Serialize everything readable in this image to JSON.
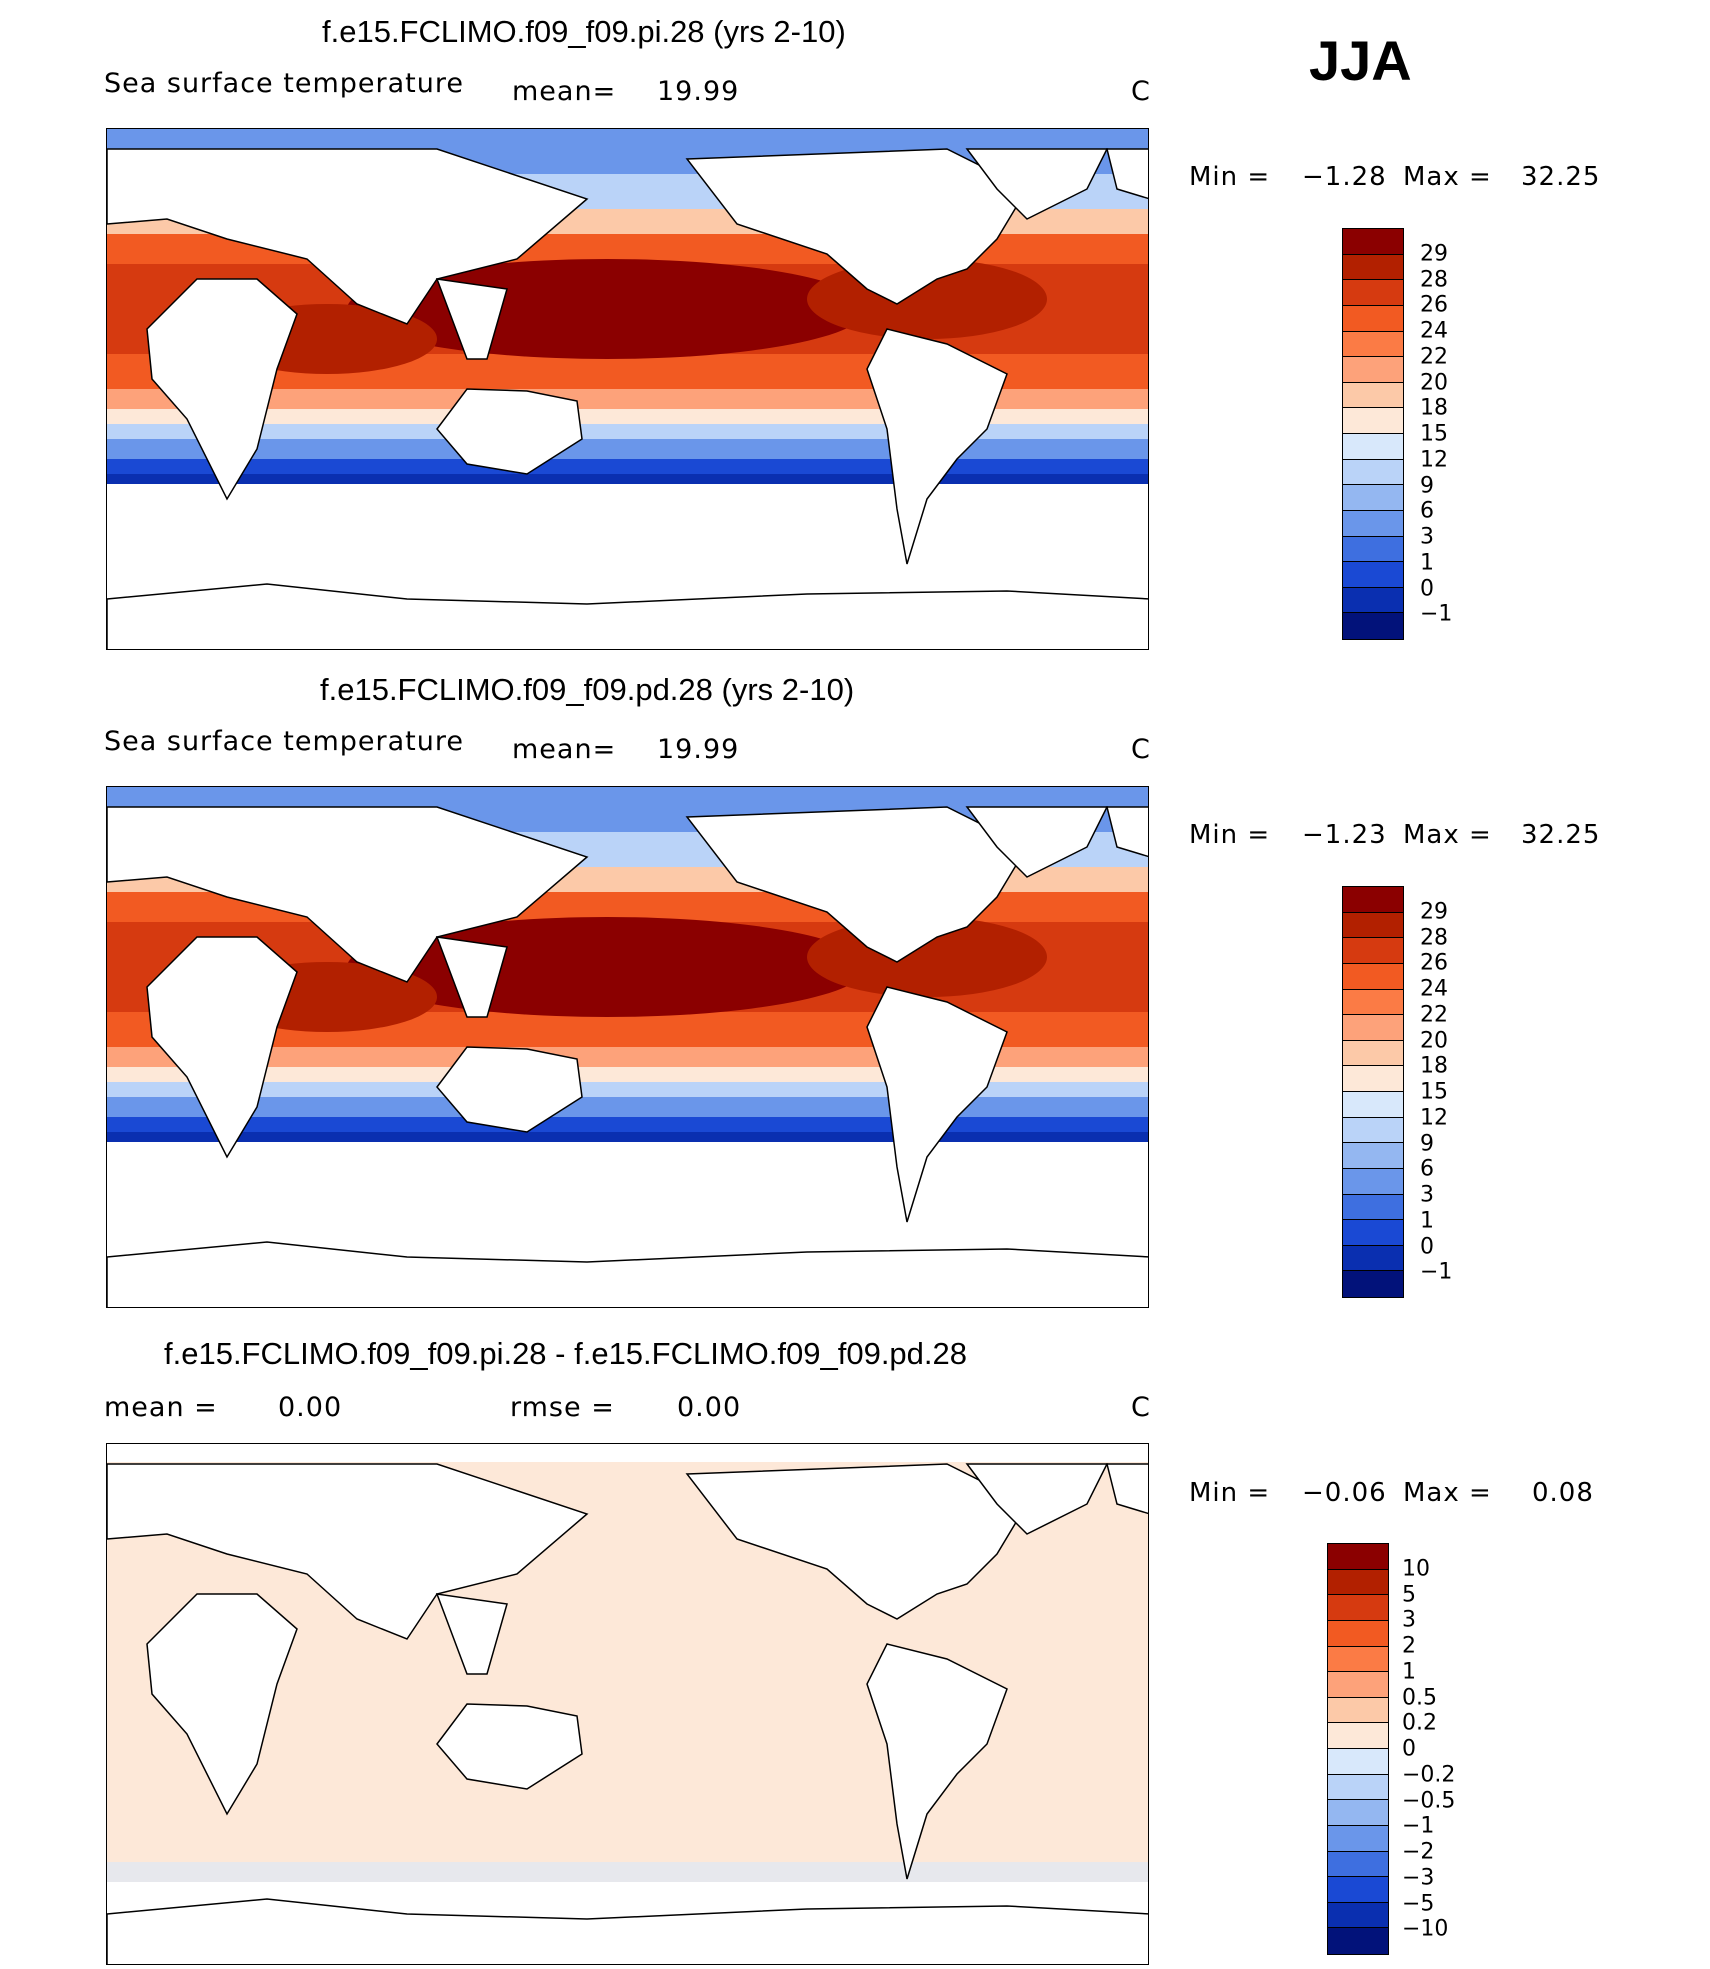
{
  "season": "JJA",
  "panels": [
    {
      "title": "f.e15.FCLIMO.f09_f09.pi.28 (yrs 2-10)",
      "variable": "Sea surface temperature",
      "mean_label": "mean=",
      "mean_value": "19.99",
      "units": "C",
      "min_label": "Min =",
      "min_value": "−1.28",
      "max_label": "Max =",
      "max_value": "32.25",
      "colorbar_labels": [
        "29",
        "28",
        "26",
        "24",
        "22",
        "20",
        "18",
        "15",
        "12",
        "9",
        "6",
        "3",
        "1",
        "0",
        "−1"
      ]
    },
    {
      "title": "f.e15.FCLIMO.f09_f09.pd.28 (yrs 2-10)",
      "variable": "Sea surface temperature",
      "mean_label": "mean=",
      "mean_value": "19.99",
      "units": "C",
      "min_label": "Min =",
      "min_value": "−1.23",
      "max_label": "Max =",
      "max_value": "32.25",
      "colorbar_labels": [
        "29",
        "28",
        "26",
        "24",
        "22",
        "20",
        "18",
        "15",
        "12",
        "9",
        "6",
        "3",
        "1",
        "0",
        "−1"
      ]
    },
    {
      "title": "f.e15.FCLIMO.f09_f09.pi.28 - f.e15.FCLIMO.f09_f09.pd.28",
      "mean_label": "mean =",
      "mean_value": "0.00",
      "rmse_label": "rmse =",
      "rmse_value": "0.00",
      "units": "C",
      "min_label": "Min =",
      "min_value": "−0.06",
      "max_label": "Max =",
      "max_value": "0.08",
      "colorbar_labels": [
        "10",
        "5",
        "3",
        "2",
        "1",
        "0.5",
        "0.2",
        "0",
        "−0.2",
        "−0.5",
        "−1",
        "−2",
        "−3",
        "−5",
        "−10"
      ]
    }
  ],
  "colors": {
    "sst_scale": [
      "#8b0000",
      "#b22000",
      "#d63a10",
      "#f25a22",
      "#fb7b45",
      "#fda27a",
      "#fcc9a8",
      "#fde8d8",
      "#d8e8fb",
      "#bad3f8",
      "#94b7f1",
      "#6a96ea",
      "#3e6fe0",
      "#1a49d4",
      "#0a2fb0",
      "#02127a"
    ],
    "diff_scale": [
      "#8b0000",
      "#b22000",
      "#d63a10",
      "#f25a22",
      "#fb7b45",
      "#fda27a",
      "#fcc9a8",
      "#fde8d8",
      "#d8e8fb",
      "#bad3f8",
      "#94b7f1",
      "#6a96ea",
      "#3e6fe0",
      "#1a49d4",
      "#0a2fb0",
      "#02127a"
    ]
  }
}
